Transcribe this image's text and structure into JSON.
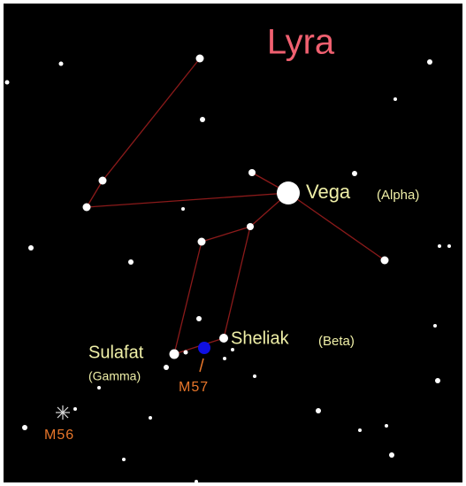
{
  "title": "Lyra",
  "stars": [
    {
      "name": "Vega",
      "designation": "(Alpha)"
    },
    {
      "name": "Sheliak",
      "designation": "(Beta)"
    },
    {
      "name": "Sulafat",
      "designation": "(Gamma)"
    }
  ],
  "objects": [
    "M57",
    "M56"
  ]
}
